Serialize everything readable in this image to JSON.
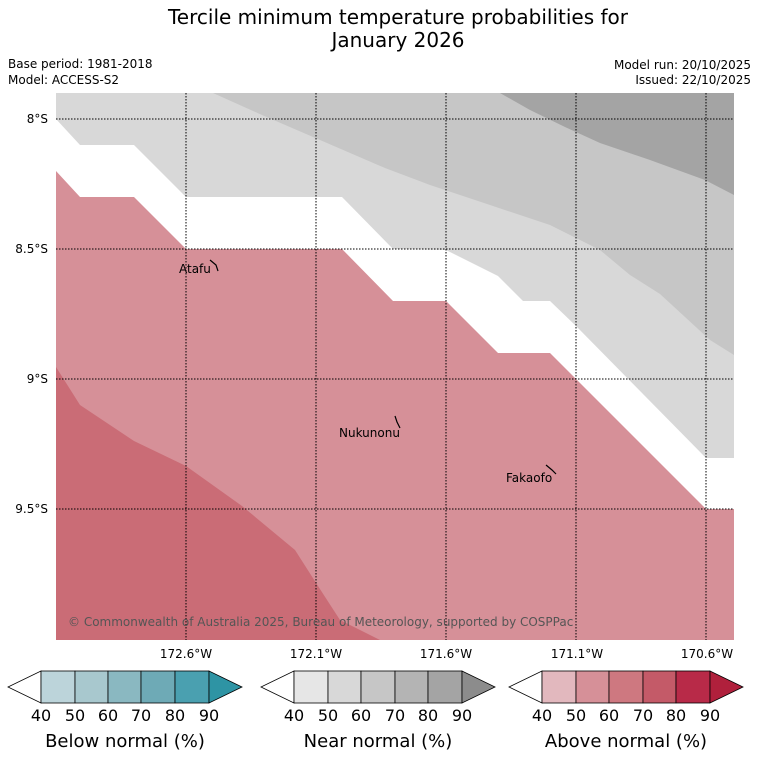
{
  "title": {
    "line1": "Tercile minimum temperature probabilities for",
    "line2": "January 2026"
  },
  "meta": {
    "base_period": "Base period: 1981-2018",
    "model": "Model: ACCESS-S2",
    "model_run": "Model run: 20/10/2025",
    "issued": "Issued: 22/10/2025"
  },
  "map": {
    "lat_labels": [
      "8°S",
      "8.5°S",
      "9°S",
      "9.5°S"
    ],
    "lon_labels": [
      "172.6°W",
      "172.1°W",
      "171.6°W",
      "171.1°W",
      "170.6°W"
    ],
    "places": [
      {
        "name": "Atafu"
      },
      {
        "name": "Nukunonu"
      },
      {
        "name": "Fakaofo"
      }
    ],
    "copyright": "© Commonwealth of Australia 2025, Bureau of Meteorology, supported by COSPPac"
  },
  "colorbars": [
    {
      "title": "Below normal (%)",
      "ticks": [
        "40",
        "50",
        "60",
        "70",
        "80",
        "90"
      ],
      "colors": [
        "#bcd4da",
        "#a8c8ce",
        "#8ab8c1",
        "#6eaab6",
        "#4aa0b0",
        "#2e94a4"
      ]
    },
    {
      "title": "Near normal (%)",
      "ticks": [
        "40",
        "50",
        "60",
        "70",
        "80",
        "90"
      ],
      "colors": [
        "#e6e6e6",
        "#d8d8d8",
        "#c6c6c6",
        "#b4b4b4",
        "#a4a4a4",
        "#8c8c8c"
      ]
    },
    {
      "title": "Above normal (%)",
      "ticks": [
        "40",
        "50",
        "60",
        "70",
        "80",
        "90"
      ],
      "colors": [
        "#e2b8be",
        "#d69098",
        "#ce7880",
        "#c45a68",
        "#b82a48",
        "#b0203c"
      ]
    }
  ],
  "colors": {
    "above_50_60": "#d69098",
    "above_60_70": "#ca6c76",
    "near_50_60": "#d8d8d8",
    "near_60_70": "#c6c6c6",
    "near_70_80": "#a4a4a4"
  }
}
